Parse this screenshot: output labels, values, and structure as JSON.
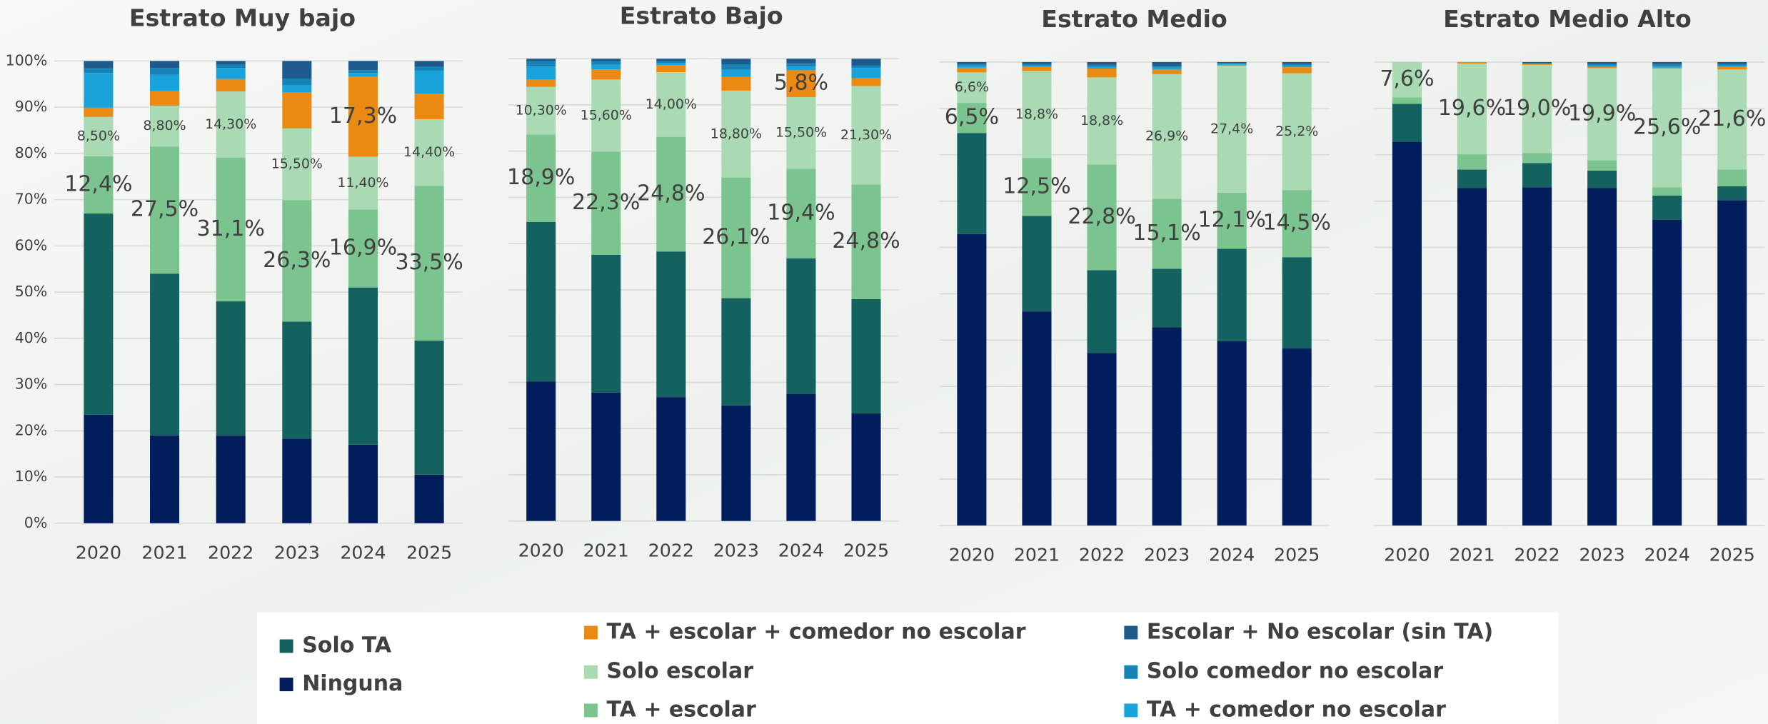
{
  "chart_data": [
    {
      "type": "bar",
      "stacked": true,
      "title": "Estrato Muy bajo",
      "categories": [
        "2020",
        "2021",
        "2022",
        "2023",
        "2024",
        "2025"
      ],
      "ylim": [
        0,
        100
      ],
      "yticks": [
        {
          "value": 0,
          "label": "0%"
        },
        {
          "value": 10,
          "label": "10%"
        },
        {
          "value": 20,
          "label": "20%"
        },
        {
          "value": 30,
          "label": "30%"
        },
        {
          "value": 40,
          "label": "40%"
        },
        {
          "value": 50,
          "label": "50%"
        },
        {
          "value": 60,
          "label": "60%"
        },
        {
          "value": 70,
          "label": "70%"
        },
        {
          "value": 80,
          "label": "80%"
        },
        {
          "value": 90,
          "label": "90%"
        },
        {
          "value": 100,
          "label": "100%"
        }
      ],
      "grid": true,
      "series": [
        {
          "name": "Ninguna",
          "color": "#021d5c",
          "values": [
            23.5,
            19,
            19,
            18.3,
            17,
            10.5
          ]
        },
        {
          "name": "Solo TA",
          "color": "#14625f",
          "values": [
            43.5,
            35,
            29,
            25.3,
            34,
            29
          ]
        },
        {
          "name": "TA + escolar",
          "color": "#7cc48f",
          "values": [
            12.4,
            27.5,
            31.1,
            26.3,
            16.9,
            33.5
          ],
          "value_labels": [
            "12,4%",
            "27,5%",
            "31,1%",
            "26,3%",
            "16,9%",
            "33,5%"
          ]
        },
        {
          "name": "Solo escolar",
          "color": "#a9dab4",
          "values": [
            8.5,
            8.8,
            14.3,
            15.5,
            11.4,
            14.4
          ],
          "value_labels": [
            "8,50%",
            "8,80%",
            "14,30%",
            "15,50%",
            "11,40%",
            "14,40%"
          ]
        },
        {
          "name": "TA + escolar + comedor no escolar",
          "color": "#ea8a12",
          "values": [
            2.0,
            3.2,
            2.7,
            7.8,
            17.3,
            5.5
          ],
          "value_labels": [
            null,
            null,
            null,
            null,
            "17,3%",
            null
          ]
        },
        {
          "name": "TA + comedor no escolar",
          "color": "#1aa3da",
          "values": [
            7.5,
            3.5,
            2.4,
            1.5,
            0.8,
            5
          ]
        },
        {
          "name": "Solo comedor no escolar",
          "color": "#1682b5",
          "values": [
            1.0,
            1.5,
            0.7,
            1.5,
            0.6,
            0.8
          ]
        },
        {
          "name": "Escolar + No escolar (sin TA)",
          "color": "#1e5a8c",
          "values": [
            1.6,
            1.5,
            0.8,
            3.8,
            2.0,
            1.3
          ]
        }
      ]
    },
    {
      "type": "bar",
      "stacked": true,
      "title": "Estrato Bajo",
      "categories": [
        "2020",
        "2021",
        "2022",
        "2023",
        "2024",
        "2025"
      ],
      "ylim": [
        0,
        100
      ],
      "grid": true,
      "series": [
        {
          "name": "Ninguna",
          "color": "#021d5c",
          "values": [
            30.2,
            27.8,
            26.8,
            25,
            27.5,
            23.3
          ]
        },
        {
          "name": "Solo TA",
          "color": "#14625f",
          "values": [
            34.5,
            29.8,
            31.5,
            23.2,
            29.3,
            24.7
          ]
        },
        {
          "name": "TA + escolar",
          "color": "#7cc48f",
          "values": [
            18.9,
            22.3,
            24.8,
            26.1,
            19.4,
            24.8
          ],
          "value_labels": [
            "18,9%",
            "22,3%",
            "24,8%",
            "26,1%",
            "19,4%",
            "24,8%"
          ]
        },
        {
          "name": "Solo escolar",
          "color": "#a9dab4",
          "values": [
            10.3,
            15.6,
            14.0,
            18.8,
            15.5,
            21.3
          ],
          "value_labels": [
            "10,30%",
            "15,60%",
            "14,00%",
            "18,80%",
            "15,50%",
            "21,30%"
          ]
        },
        {
          "name": "TA + escolar + comedor no escolar",
          "color": "#ea8a12",
          "values": [
            1.6,
            2.2,
            1.5,
            3,
            5.8,
            1.7
          ],
          "value_labels": [
            null,
            null,
            null,
            null,
            "5,8%",
            null
          ]
        },
        {
          "name": "TA + comedor no escolar",
          "color": "#1aa3da",
          "values": [
            2.8,
            1,
            0.5,
            1.5,
            0.8,
            2.2
          ]
        },
        {
          "name": "Solo comedor no escolar",
          "color": "#1682b5",
          "values": [
            1.2,
            0.8,
            0.4,
            1.2,
            0.7,
            0.5
          ]
        },
        {
          "name": "Escolar + No escolar (sin TA)",
          "color": "#1e5a8c",
          "values": [
            0.5,
            0.5,
            0.5,
            1.2,
            1.0,
            1.5
          ]
        }
      ]
    },
    {
      "type": "bar",
      "stacked": true,
      "title": "Estrato Medio",
      "categories": [
        "2020",
        "2021",
        "2022",
        "2023",
        "2024",
        "2025"
      ],
      "ylim": [
        0,
        100
      ],
      "grid": true,
      "series": [
        {
          "name": "Ninguna",
          "color": "#021d5c",
          "values": [
            62.9,
            46.2,
            37.2,
            42.8,
            39.8,
            38.2
          ]
        },
        {
          "name": "Solo TA",
          "color": "#14625f",
          "values": [
            21.8,
            20.6,
            17.9,
            12.6,
            19.9,
            19.7
          ]
        },
        {
          "name": "TA + escolar",
          "color": "#7cc48f",
          "values": [
            6.5,
            12.5,
            22.8,
            15.1,
            12.1,
            14.5
          ],
          "value_labels": [
            "6,5%",
            "12,5%",
            "22,8%",
            "15,1%",
            "12,1%",
            "14,5%"
          ]
        },
        {
          "name": "Solo escolar",
          "color": "#a9dab4",
          "values": [
            6.6,
            18.8,
            18.8,
            26.9,
            27.4,
            25.2
          ],
          "value_labels": [
            "6,6%",
            "18,8%",
            "18,8%",
            "26,9%",
            "27,4%",
            "25,2%"
          ]
        },
        {
          "name": "TA + escolar + comedor no escolar",
          "color": "#ea8a12",
          "values": [
            1.0,
            0.9,
            1.9,
            1.0,
            0.2,
            1.3
          ]
        },
        {
          "name": "TA + comedor no escolar",
          "color": "#1aa3da",
          "values": [
            0.5,
            0.3,
            0.4,
            0.4,
            0.2,
            0.4
          ]
        },
        {
          "name": "Solo comedor no escolar",
          "color": "#1682b5",
          "values": [
            0.3,
            0.3,
            0.4,
            0.4,
            0.2,
            0.3
          ]
        },
        {
          "name": "Escolar + No escolar (sin TA)",
          "color": "#1e5a8c",
          "values": [
            0.4,
            0.4,
            0.6,
            0.8,
            0.2,
            0.4
          ]
        }
      ]
    },
    {
      "type": "bar",
      "stacked": true,
      "title": "Estrato Medio Alto",
      "categories": [
        "2020",
        "2021",
        "2022",
        "2023",
        "2024",
        "2025"
      ],
      "ylim": [
        0,
        100
      ],
      "grid": true,
      "series": [
        {
          "name": "Ninguna",
          "color": "#021d5c",
          "values": [
            82.8,
            72.8,
            73,
            72.8,
            66,
            70.2
          ]
        },
        {
          "name": "Solo TA",
          "color": "#14625f",
          "values": [
            8.2,
            4,
            5.2,
            3.8,
            5.2,
            3
          ]
        },
        {
          "name": "TA + escolar",
          "color": "#7cc48f",
          "values": [
            1.4,
            3.3,
            2.2,
            2.2,
            1.8,
            3.6
          ]
        },
        {
          "name": "Solo escolar",
          "color": "#a9dab4",
          "values": [
            7.6,
            19.6,
            19.0,
            19.9,
            25.6,
            21.6
          ],
          "value_labels": [
            "7,6%",
            "19,6%",
            "19,0%",
            "19,9%",
            "25,6%",
            "21,6%"
          ]
        },
        {
          "name": "TA + escolar + comedor no escolar",
          "color": "#ea8a12",
          "values": [
            0,
            0.3,
            0.2,
            0.3,
            0.2,
            0.6
          ]
        },
        {
          "name": "TA + comedor no escolar",
          "color": "#1aa3da",
          "values": [
            0,
            0,
            0,
            0.3,
            0.3,
            0.3
          ]
        },
        {
          "name": "Solo comedor no escolar",
          "color": "#1682b5",
          "values": [
            0,
            0,
            0.2,
            0.3,
            0.5,
            0.3
          ]
        },
        {
          "name": "Escolar + No escolar (sin TA)",
          "color": "#1e5a8c",
          "values": [
            0,
            0,
            0.2,
            0.4,
            0.4,
            0.4
          ]
        }
      ]
    }
  ]
}
